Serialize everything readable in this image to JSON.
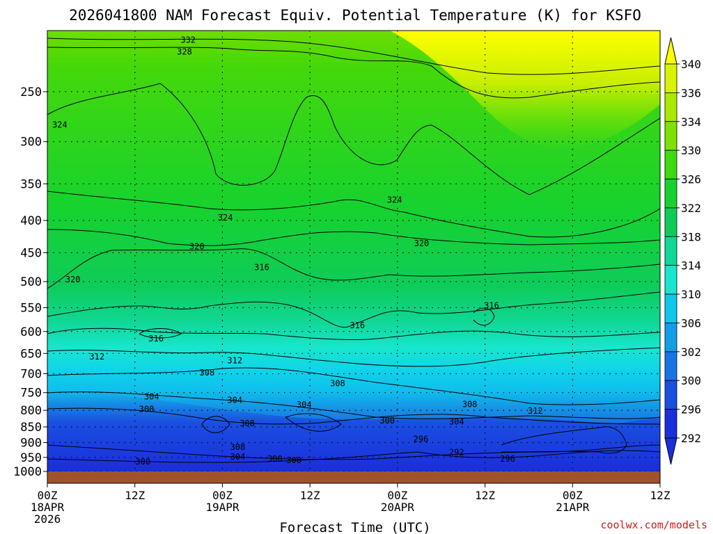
{
  "chart_data": {
    "type": "heatmap",
    "title": "2026041800 NAM Forecast Equiv. Potential Temperature (K) for KSFO",
    "xlabel": "Forecast Time (UTC)",
    "ylabel": "",
    "x_ticks": [
      {
        "line1": "00Z",
        "line2": "18APR",
        "line3": "2026"
      },
      {
        "line1": "12Z",
        "line2": "",
        "line3": ""
      },
      {
        "line1": "00Z",
        "line2": "19APR",
        "line3": ""
      },
      {
        "line1": "12Z",
        "line2": "",
        "line3": ""
      },
      {
        "line1": "00Z",
        "line2": "20APR",
        "line3": ""
      },
      {
        "line1": "12Z",
        "line2": "",
        "line3": ""
      },
      {
        "line1": "00Z",
        "line2": "21APR",
        "line3": ""
      },
      {
        "line1": "12Z",
        "line2": "",
        "line3": ""
      }
    ],
    "x_range_hours": [
      0,
      84
    ],
    "y_ticks": [
      "250",
      "300",
      "350",
      "400",
      "450",
      "500",
      "550",
      "600",
      "650",
      "700",
      "750",
      "800",
      "850",
      "900",
      "950",
      "1000"
    ],
    "y_range": [
      200,
      1000
    ],
    "y_scale": "log",
    "grid": true,
    "colorbar": {
      "labels": [
        "340",
        "336",
        "334",
        "330",
        "326",
        "322",
        "318",
        "314",
        "310",
        "306",
        "302",
        "300",
        "296",
        "292"
      ],
      "colors": [
        "#ffff00",
        "#d8f200",
        "#aaea00",
        "#7de200",
        "#3fd90f",
        "#17d22e",
        "#0ecc5a",
        "#10d795",
        "#18e6cd",
        "#0fc6ec",
        "#129ee6",
        "#1675e2",
        "#1a4fe0",
        "#1a2edc"
      ]
    },
    "contour_labels": [
      {
        "text": "332",
        "t": 19.3,
        "p": 207
      },
      {
        "text": "328",
        "t": 18.8,
        "p": 216
      },
      {
        "text": "324",
        "t": 1.7,
        "p": 282
      },
      {
        "text": "324",
        "t": 24.4,
        "p": 396
      },
      {
        "text": "324",
        "t": 47.6,
        "p": 371
      },
      {
        "text": "320",
        "t": 20.5,
        "p": 440
      },
      {
        "text": "320",
        "t": 3.5,
        "p": 496
      },
      {
        "text": "320",
        "t": 51.3,
        "p": 435
      },
      {
        "text": "316",
        "t": 29.4,
        "p": 475
      },
      {
        "text": "316",
        "t": 42.5,
        "p": 587
      },
      {
        "text": "316",
        "t": 60.9,
        "p": 546
      },
      {
        "text": "316",
        "t": 14.9,
        "p": 616
      },
      {
        "text": "312",
        "t": 6.8,
        "p": 658
      },
      {
        "text": "312",
        "t": 25.7,
        "p": 667
      },
      {
        "text": "308",
        "t": 21.9,
        "p": 697
      },
      {
        "text": "308",
        "t": 39.8,
        "p": 725
      },
      {
        "text": "308",
        "t": 27.4,
        "p": 839
      },
      {
        "text": "308",
        "t": 26.1,
        "p": 915
      },
      {
        "text": "308",
        "t": 57.9,
        "p": 783
      },
      {
        "text": "304",
        "t": 14.3,
        "p": 761
      },
      {
        "text": "304",
        "t": 25.7,
        "p": 771
      },
      {
        "text": "304",
        "t": 35.2,
        "p": 784
      },
      {
        "text": "304",
        "t": 56.1,
        "p": 834
      },
      {
        "text": "304",
        "t": 26.1,
        "p": 948
      },
      {
        "text": "300",
        "t": 13.6,
        "p": 797
      },
      {
        "text": "300",
        "t": 46.6,
        "p": 831
      },
      {
        "text": "300",
        "t": 31.2,
        "p": 955
      },
      {
        "text": "300",
        "t": 33.8,
        "p": 960
      },
      {
        "text": "300",
        "t": 13.1,
        "p": 965
      },
      {
        "text": "296",
        "t": 51.2,
        "p": 889
      },
      {
        "text": "296",
        "t": 63.1,
        "p": 955
      },
      {
        "text": "292",
        "t": 56.1,
        "p": 933
      },
      {
        "text": "312",
        "t": 66.9,
        "p": 802
      }
    ]
  },
  "credit": "coolwx.com/models"
}
